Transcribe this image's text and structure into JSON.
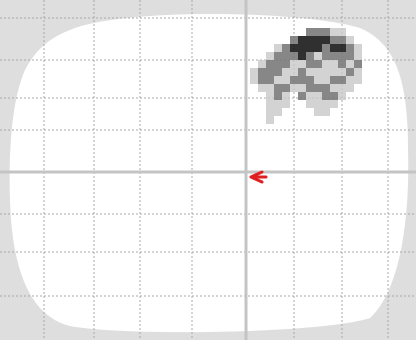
{
  "view": {
    "type": "glass-brain-projection",
    "grid": true,
    "crosshair": true
  },
  "colors": {
    "background_gray": "#dedede",
    "brain_fill": "#ffffff",
    "grid_line": "#a8a8a8",
    "crosshair": "#c4c4c4",
    "cursor_marker": "#e02020",
    "blob_dark": "#1a1a1a",
    "blob_mid": "#7a7a7a",
    "blob_light": "#c8c8c8"
  },
  "icons": {
    "cursor_marker": "red-arrow-cursor-icon"
  }
}
